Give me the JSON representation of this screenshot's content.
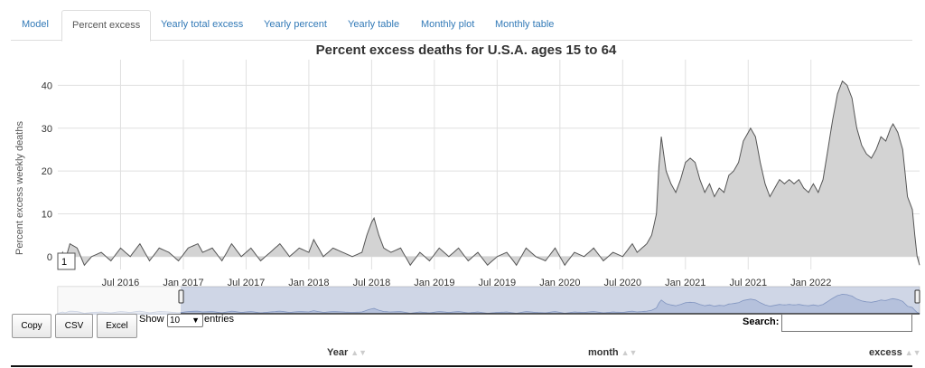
{
  "tabs": [
    {
      "label": "Model",
      "active": false
    },
    {
      "label": "Percent excess",
      "active": true
    },
    {
      "label": "Yearly total excess",
      "active": false
    },
    {
      "label": "Yearly percent",
      "active": false
    },
    {
      "label": "Yearly table",
      "active": false
    },
    {
      "label": "Monthly plot",
      "active": false
    },
    {
      "label": "Monthly table",
      "active": false
    }
  ],
  "chart_data": {
    "type": "area",
    "title": "Percent excess deaths for U.S.A. ages 15 to 64",
    "ylabel": "Percent excess weekly deaths",
    "xlabel": "",
    "ylim": [
      -3,
      46
    ],
    "y_ticks": [
      0,
      10,
      20,
      30,
      40
    ],
    "x_ticks": [
      "Jul 2016",
      "Jan 2017",
      "Jul 2017",
      "Jan 2018",
      "Jul 2018",
      "Jan 2019",
      "Jul 2019",
      "Jan 2020",
      "Jul 2020",
      "Jan 2021",
      "Jul 2021",
      "Jan 2022"
    ],
    "grid": true,
    "fill_color": "#d3d3d3",
    "line_color": "#555555",
    "range_marker": "1",
    "keypoints": [
      [
        0,
        -2
      ],
      [
        2,
        1
      ],
      [
        3,
        -1
      ],
      [
        5,
        3
      ],
      [
        8,
        2
      ],
      [
        11,
        -2
      ],
      [
        14,
        0
      ],
      [
        18,
        1
      ],
      [
        22,
        -1
      ],
      [
        26,
        2
      ],
      [
        30,
        0
      ],
      [
        34,
        3
      ],
      [
        38,
        -1
      ],
      [
        42,
        2
      ],
      [
        46,
        1
      ],
      [
        50,
        -1
      ],
      [
        54,
        2
      ],
      [
        58,
        3
      ],
      [
        60,
        1
      ],
      [
        64,
        2
      ],
      [
        68,
        -1
      ],
      [
        72,
        3
      ],
      [
        76,
        0
      ],
      [
        80,
        2
      ],
      [
        84,
        -1
      ],
      [
        88,
        1
      ],
      [
        92,
        3
      ],
      [
        96,
        0
      ],
      [
        100,
        2
      ],
      [
        104,
        1
      ],
      [
        106,
        4
      ],
      [
        108,
        2
      ],
      [
        110,
        0
      ],
      [
        114,
        2
      ],
      [
        118,
        1
      ],
      [
        122,
        0
      ],
      [
        126,
        1
      ],
      [
        128,
        5
      ],
      [
        130,
        8
      ],
      [
        131,
        9
      ],
      [
        133,
        5
      ],
      [
        135,
        2
      ],
      [
        138,
        1
      ],
      [
        142,
        2
      ],
      [
        146,
        -2
      ],
      [
        150,
        1
      ],
      [
        154,
        -1
      ],
      [
        158,
        2
      ],
      [
        162,
        0
      ],
      [
        166,
        2
      ],
      [
        170,
        -1
      ],
      [
        174,
        1
      ],
      [
        178,
        -2
      ],
      [
        182,
        0
      ],
      [
        186,
        1
      ],
      [
        190,
        -2
      ],
      [
        194,
        2
      ],
      [
        198,
        0
      ],
      [
        202,
        -1
      ],
      [
        206,
        2
      ],
      [
        210,
        -2
      ],
      [
        214,
        1
      ],
      [
        218,
        0
      ],
      [
        222,
        2
      ],
      [
        226,
        -1
      ],
      [
        230,
        1
      ],
      [
        234,
        0
      ],
      [
        238,
        3
      ],
      [
        240,
        1
      ],
      [
        244,
        3
      ],
      [
        246,
        5
      ],
      [
        248,
        10
      ],
      [
        249,
        21
      ],
      [
        250,
        28
      ],
      [
        252,
        20
      ],
      [
        254,
        17
      ],
      [
        256,
        15
      ],
      [
        258,
        18
      ],
      [
        260,
        22
      ],
      [
        262,
        23
      ],
      [
        264,
        22
      ],
      [
        266,
        18
      ],
      [
        268,
        15
      ],
      [
        270,
        17
      ],
      [
        272,
        14
      ],
      [
        274,
        16
      ],
      [
        276,
        15
      ],
      [
        278,
        19
      ],
      [
        280,
        20
      ],
      [
        282,
        22
      ],
      [
        284,
        27
      ],
      [
        286,
        29
      ],
      [
        287,
        30
      ],
      [
        289,
        28
      ],
      [
        291,
        22
      ],
      [
        293,
        17
      ],
      [
        295,
        14
      ],
      [
        297,
        16
      ],
      [
        299,
        18
      ],
      [
        301,
        17
      ],
      [
        303,
        18
      ],
      [
        305,
        17
      ],
      [
        307,
        18
      ],
      [
        309,
        16
      ],
      [
        311,
        15
      ],
      [
        313,
        17
      ],
      [
        315,
        15
      ],
      [
        317,
        18
      ],
      [
        319,
        25
      ],
      [
        321,
        32
      ],
      [
        323,
        38
      ],
      [
        325,
        41
      ],
      [
        327,
        40
      ],
      [
        329,
        37
      ],
      [
        331,
        30
      ],
      [
        333,
        26
      ],
      [
        335,
        24
      ],
      [
        337,
        23
      ],
      [
        339,
        25
      ],
      [
        341,
        28
      ],
      [
        343,
        27
      ],
      [
        345,
        30
      ],
      [
        346,
        31
      ],
      [
        348,
        29
      ],
      [
        350,
        25
      ],
      [
        352,
        14
      ],
      [
        354,
        11
      ],
      [
        355,
        5
      ],
      [
        356,
        0
      ],
      [
        357,
        -2
      ]
    ]
  },
  "range_selector": {
    "handle_label": "1"
  },
  "toolbar": {
    "copy": "Copy",
    "csv": "CSV",
    "excel": "Excel"
  },
  "length": {
    "prefix": "Show",
    "value": "10",
    "suffix": "entries"
  },
  "search": {
    "label": "Search:",
    "value": ""
  },
  "table": {
    "columns": [
      "Year",
      "month",
      "excess"
    ]
  }
}
